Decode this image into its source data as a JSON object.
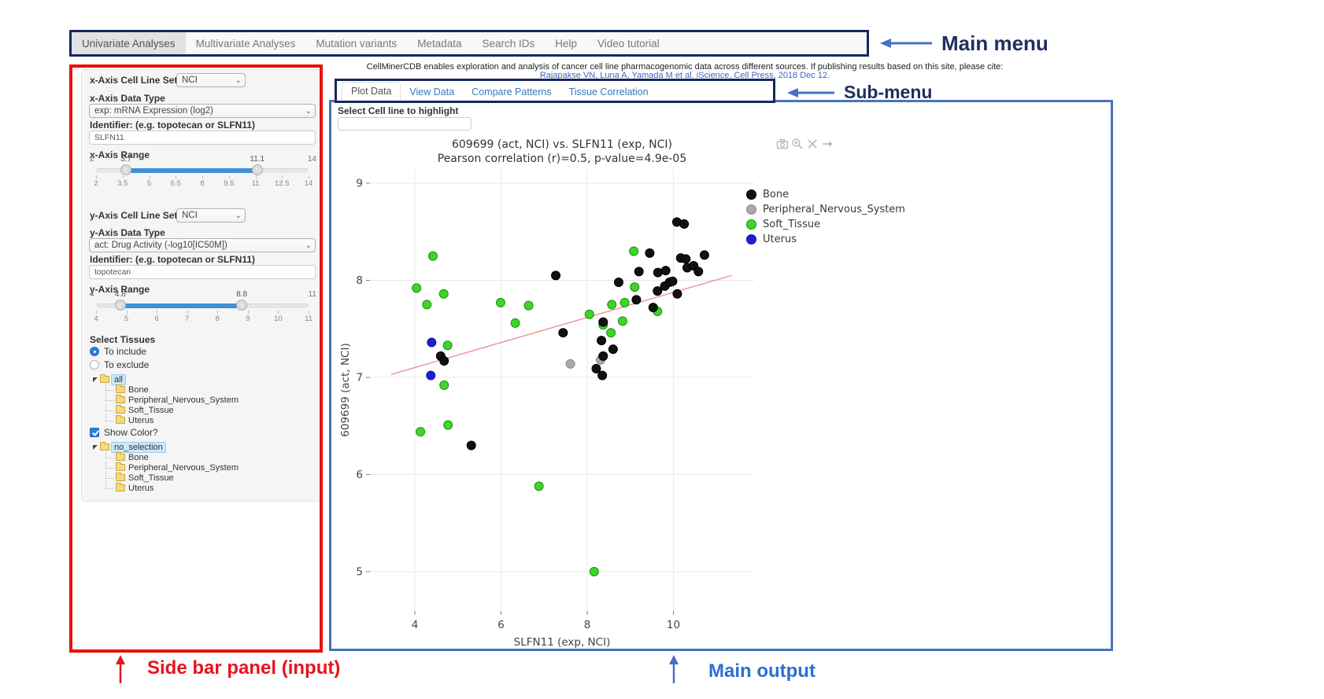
{
  "annotations": {
    "main_menu": "Main menu",
    "sub_menu": "Sub-menu",
    "sidebar": "Side bar panel (input)",
    "main_output": "Main output"
  },
  "main_menu": {
    "items": [
      {
        "label": "Univariate Analyses",
        "active": true
      },
      {
        "label": "Multivariate Analyses",
        "active": false
      },
      {
        "label": "Mutation variants",
        "active": false
      },
      {
        "label": "Metadata",
        "active": false
      },
      {
        "label": "Search IDs",
        "active": false
      },
      {
        "label": "Help",
        "active": false
      },
      {
        "label": "Video tutorial",
        "active": false
      }
    ]
  },
  "header": {
    "tagline": "CellMinerCDB enables exploration and analysis of cancer cell line pharmacogenomic data across different sources. If publishing results based on this site, please cite:",
    "citation": "Rajapakse VN, Luna A, Yamada M et al. iScience, Cell Press, 2018 Dec 12."
  },
  "sub_menu": {
    "tabs": [
      {
        "label": "Plot Data",
        "active": true
      },
      {
        "label": "View Data",
        "active": false
      },
      {
        "label": "Compare Patterns",
        "active": false
      },
      {
        "label": "Tissue Correlation",
        "active": false
      }
    ]
  },
  "sidebar": {
    "x_axis": {
      "cell_line_set_label": "x-Axis Cell Line Set",
      "cell_line_set_value": "NCI",
      "data_type_label": "x-Axis Data Type",
      "data_type_value": "exp: mRNA Expression (log2)",
      "identifier_label": "Identifier: (e.g. topotecan or SLFN11)",
      "identifier_value": "SLFN11",
      "range_label": "x-Axis Range",
      "range": {
        "min": 2,
        "max": 14,
        "from": 3.7,
        "to": 11.1,
        "grid": [
          "2",
          "3.5",
          "5",
          "6.5",
          "8",
          "9.5",
          "11",
          "12.5",
          "14"
        ]
      }
    },
    "y_axis": {
      "cell_line_set_label": "y-Axis Cell Line Set",
      "cell_line_set_value": "NCI",
      "data_type_label": "y-Axis Data Type",
      "data_type_value": "act: Drug Activity (-log10[IC50M])",
      "identifier_label": "Identifier: (e.g. topotecan or SLFN11)",
      "identifier_value": "topotecan",
      "range_label": "y-Axis Range",
      "range": {
        "min": 4,
        "max": 11,
        "from": 4.8,
        "to": 8.8,
        "grid": [
          "4",
          "5",
          "6",
          "7",
          "8",
          "9",
          "10",
          "11"
        ]
      }
    },
    "tissues": {
      "label": "Select Tissues",
      "include_label": "To include",
      "exclude_label": "To exclude",
      "include_selected": true,
      "tree_all": {
        "root": "all",
        "children": [
          "Bone",
          "Peripheral_Nervous_System",
          "Soft_Tissue",
          "Uterus"
        ]
      },
      "show_color_label": "Show Color?",
      "show_color_checked": true,
      "tree_no_selection": {
        "root": "no_selection",
        "children": [
          "Bone",
          "Peripheral_Nervous_System",
          "Soft_Tissue",
          "Uterus"
        ]
      }
    }
  },
  "main_output": {
    "highlight_label": "Select Cell line to highlight",
    "highlight_value": ""
  },
  "modebar_icons": [
    "camera-icon",
    "zoom-in-icon",
    "close-icon",
    "arrow-right-icon"
  ],
  "chart_data": {
    "type": "scatter",
    "title": "609699 (act, NCI) vs. SLFN11 (exp, NCI)",
    "subtitle": "Pearson correlation (r)=0.5, p-value=4.9e-05",
    "xlabel": "SLFN11 (exp, NCI)",
    "ylabel": "609699 (act, NCI)",
    "xlim": [
      3.4,
      11.5
    ],
    "ylim": [
      4.5,
      9.2
    ],
    "xticks": [
      4,
      6,
      8,
      10
    ],
    "yticks": [
      5,
      6,
      7,
      8,
      9
    ],
    "grid": true,
    "legend_position": "right",
    "series": [
      {
        "name": "Bone",
        "color": "#111111",
        "stroke": "#000000",
        "points": [
          [
            4.6,
            7.22
          ],
          [
            4.68,
            7.17
          ],
          [
            5.31,
            6.3
          ],
          [
            7.27,
            8.05
          ],
          [
            7.44,
            7.46
          ],
          [
            8.33,
            7.38
          ],
          [
            8.6,
            7.29
          ],
          [
            8.37,
            7.22
          ],
          [
            8.21,
            7.09
          ],
          [
            8.35,
            7.02
          ],
          [
            8.37,
            7.57
          ],
          [
            8.73,
            7.98
          ],
          [
            9.2,
            8.09
          ],
          [
            9.45,
            8.28
          ],
          [
            9.64,
            8.08
          ],
          [
            9.82,
            8.1
          ],
          [
            9.63,
            7.89
          ],
          [
            9.8,
            7.94
          ],
          [
            9.91,
            7.98
          ],
          [
            9.98,
            7.99
          ],
          [
            10.09,
            7.86
          ],
          [
            9.14,
            7.8
          ],
          [
            9.53,
            7.72
          ],
          [
            10.08,
            8.6
          ],
          [
            10.25,
            8.58
          ],
          [
            10.17,
            8.23
          ],
          [
            10.29,
            8.22
          ],
          [
            10.72,
            8.26
          ],
          [
            10.32,
            8.13
          ],
          [
            10.47,
            8.15
          ],
          [
            10.58,
            8.09
          ]
        ]
      },
      {
        "name": "Peripheral_Nervous_System",
        "color": "#a9a9a9",
        "stroke": "#8a8a8a",
        "points": [
          [
            7.61,
            7.14
          ],
          [
            8.31,
            7.18
          ]
        ]
      },
      {
        "name": "Soft_Tissue",
        "color": "#3ed626",
        "stroke": "#1e8c1e",
        "points": [
          [
            4.04,
            7.92
          ],
          [
            4.28,
            7.75
          ],
          [
            4.42,
            8.25
          ],
          [
            4.67,
            7.86
          ],
          [
            4.76,
            7.33
          ],
          [
            4.68,
            6.92
          ],
          [
            4.13,
            6.44
          ],
          [
            4.77,
            6.51
          ],
          [
            5.99,
            7.77
          ],
          [
            6.33,
            7.56
          ],
          [
            6.64,
            7.74
          ],
          [
            6.88,
            5.88
          ],
          [
            8.16,
            5.0
          ],
          [
            8.05,
            7.65
          ],
          [
            8.37,
            7.54
          ],
          [
            8.55,
            7.46
          ],
          [
            8.57,
            7.75
          ],
          [
            8.82,
            7.58
          ],
          [
            8.87,
            7.77
          ],
          [
            9.08,
            8.3
          ],
          [
            9.1,
            7.93
          ],
          [
            9.63,
            7.68
          ]
        ]
      },
      {
        "name": "Uterus",
        "color": "#1f1fd1",
        "stroke": "#1414a8",
        "points": [
          [
            4.39,
            7.36
          ],
          [
            4.37,
            7.02
          ]
        ]
      }
    ],
    "trendline": {
      "x1": 3.45,
      "y1": 7.03,
      "x2": 11.35,
      "y2": 8.05,
      "color": "#f08080"
    }
  },
  "colors": {
    "slider_accent": "#3f8fd8",
    "box_red": "#e8100c",
    "box_blue": "#4a72b8",
    "box_navy": "#16275c",
    "annotation_navy": "#1f2f5f",
    "annotation_red": "#e8131c",
    "annotation_blue": "#2d6fd2",
    "link_blue": "#337ab7"
  }
}
